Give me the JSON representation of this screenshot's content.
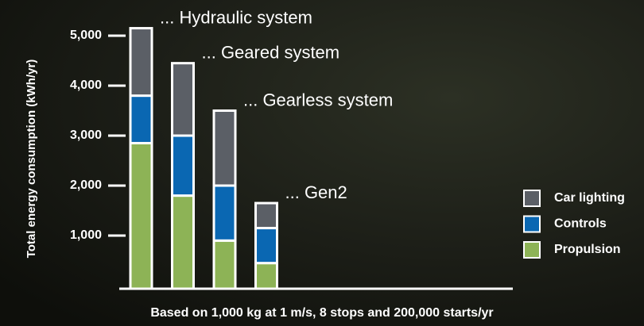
{
  "chart_data": {
    "type": "stacked_bar",
    "categories": [
      "... Hydraulic system",
      "... Geared system",
      "... Gearless system",
      "... Gen2"
    ],
    "series": [
      {
        "name": "Propulsion",
        "color": "#8db356",
        "values": [
          2850,
          1800,
          900,
          450
        ]
      },
      {
        "name": "Controls",
        "color": "#0a67b2",
        "values": [
          950,
          1200,
          1100,
          700
        ]
      },
      {
        "name": "Car lighting",
        "color": "#5b5f66",
        "values": [
          1350,
          1450,
          1500,
          500
        ]
      }
    ],
    "ylim": [
      0,
      5000
    ],
    "yticks": [
      {
        "value": 1000,
        "label": "1,000"
      },
      {
        "value": 2000,
        "label": "2,000"
      },
      {
        "value": 3000,
        "label": "3,000"
      },
      {
        "value": 4000,
        "label": "4,000"
      },
      {
        "value": 5000,
        "label": "5,000"
      }
    ],
    "y_label": "Total energy consumption (kWh/yr)",
    "x_label": "Based on 1,000 kg at 1 m/s, 8 stops and 200,000 starts/yr",
    "legend_position": "right"
  }
}
